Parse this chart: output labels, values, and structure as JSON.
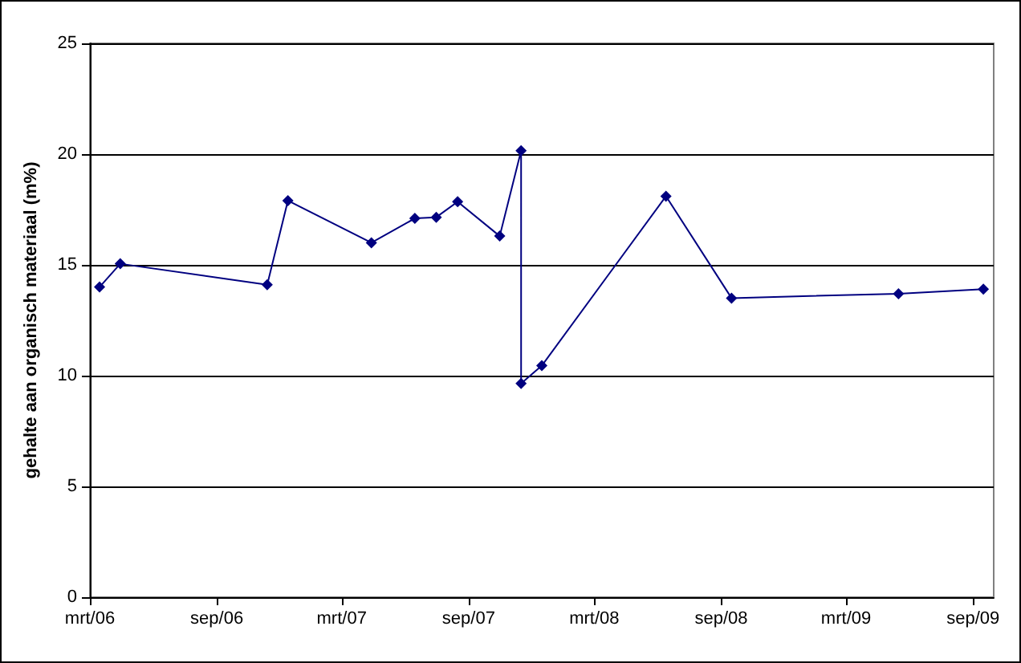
{
  "chart_data": {
    "type": "line",
    "ylabel": "gehalte aan organisch materiaal (m%)",
    "x": [
      "2006-03-15",
      "2006-04-14",
      "2006-11-13",
      "2006-12-13",
      "2007-04-13",
      "2007-06-15",
      "2007-07-16",
      "2007-08-16",
      "2007-10-16",
      "2007-11-16",
      "2007-11-16",
      "2007-12-16",
      "2008-06-13",
      "2008-09-16",
      "2009-05-16",
      "2009-09-16"
    ],
    "series": [
      {
        "color": "#000080",
        "values": [
          14.0,
          15.05,
          14.1,
          17.9,
          16.0,
          17.1,
          17.15,
          17.85,
          16.3,
          20.15,
          9.65,
          10.45,
          18.1,
          13.5,
          13.7,
          13.9
        ]
      }
    ],
    "xlim": [
      "2006-03",
      "2009-10"
    ],
    "xticks": [
      {
        "value": "2006-03",
        "label": "mrt/06"
      },
      {
        "value": "2006-09",
        "label": "sep/06"
      },
      {
        "value": "2007-03",
        "label": "mrt/07"
      },
      {
        "value": "2007-09",
        "label": "sep/07"
      },
      {
        "value": "2008-03",
        "label": "mrt/08"
      },
      {
        "value": "2008-09",
        "label": "sep/08"
      },
      {
        "value": "2009-03",
        "label": "mrt/09"
      },
      {
        "value": "2009-09",
        "label": "sep/09"
      }
    ],
    "ylim": [
      0,
      25
    ],
    "yticks": [
      0,
      5,
      10,
      15,
      20,
      25
    ],
    "grid": "y",
    "marker": "diamond",
    "line_style": "solid"
  }
}
